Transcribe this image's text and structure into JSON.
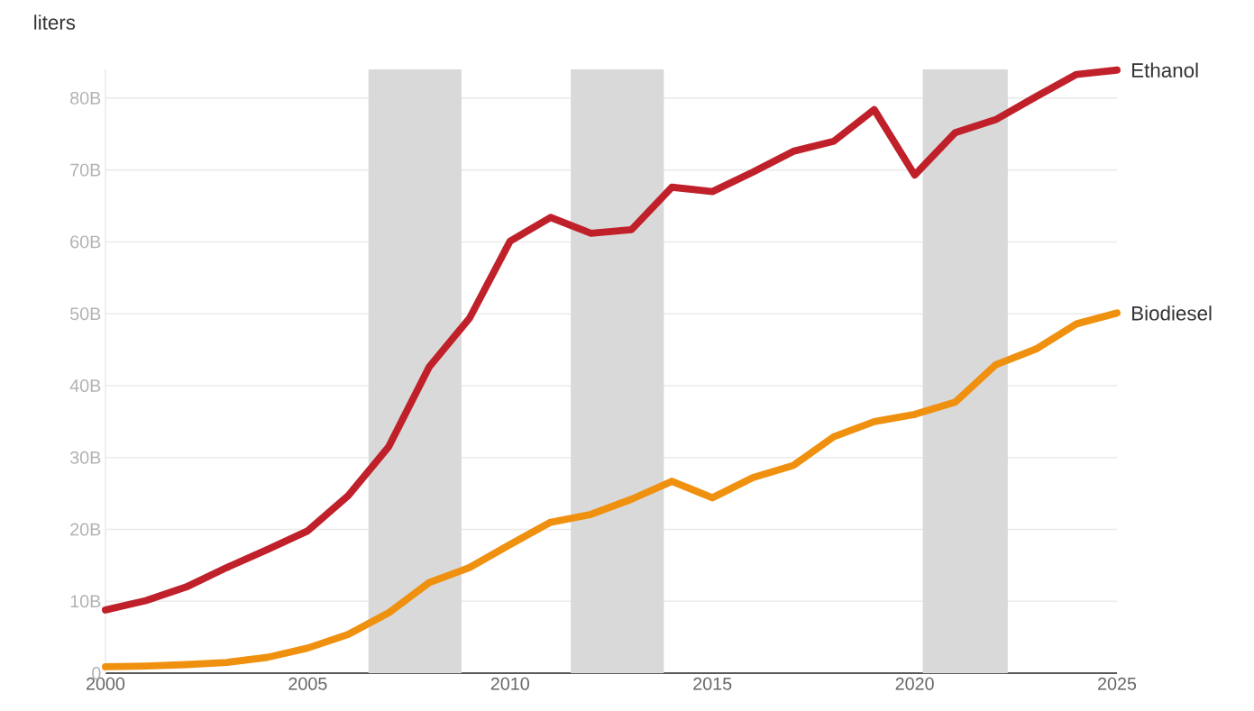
{
  "chart_data": {
    "type": "line",
    "ylabel": "liters",
    "x": [
      2000,
      2001,
      2002,
      2003,
      2004,
      2005,
      2006,
      2007,
      2008,
      2009,
      2010,
      2011,
      2012,
      2013,
      2014,
      2015,
      2016,
      2017,
      2018,
      2019,
      2020,
      2021,
      2022,
      2023,
      2024,
      2025
    ],
    "series": [
      {
        "name": "Ethanol",
        "color": "#c0202a",
        "values": [
          8.8,
          10.1,
          12.0,
          14.7,
          17.2,
          19.8,
          24.7,
          31.5,
          42.6,
          49.4,
          60.1,
          63.4,
          61.2,
          61.7,
          67.6,
          67.0,
          69.7,
          72.6,
          74.0,
          78.4,
          69.3,
          75.2,
          77.0,
          80.2,
          83.3,
          83.9
        ]
      },
      {
        "name": "Biodiesel",
        "color": "#f0900f",
        "values": [
          0.9,
          1.0,
          1.2,
          1.5,
          2.2,
          3.5,
          5.4,
          8.4,
          12.6,
          14.7,
          17.9,
          21.0,
          22.1,
          24.2,
          26.7,
          24.4,
          27.2,
          28.9,
          32.9,
          35.0,
          36.0,
          37.7,
          42.9,
          45.1,
          48.6,
          50.1
        ]
      }
    ],
    "xlim": [
      2000,
      2025
    ],
    "xticks": [
      2000,
      2005,
      2010,
      2015,
      2020,
      2025
    ],
    "ylim": [
      0,
      84
    ],
    "yticks": [
      0,
      {
        "value": 10,
        "label": "10B"
      },
      {
        "value": 20,
        "label": "20B"
      },
      {
        "value": 30,
        "label": "30B"
      },
      {
        "value": 40,
        "label": "40B"
      },
      {
        "value": 50,
        "label": "50B"
      },
      {
        "value": 60,
        "label": "60B"
      },
      {
        "value": 70,
        "label": "70B"
      },
      {
        "value": 80,
        "label": "80B"
      }
    ],
    "bands": [
      {
        "axis": "x",
        "from": 2006.5,
        "to": 2008.8,
        "color": "#d9d9d9"
      },
      {
        "axis": "x",
        "from": 2011.5,
        "to": 2013.8,
        "color": "#d9d9d9"
      },
      {
        "axis": "x",
        "from": 2020.2,
        "to": 2022.3,
        "color": "#d9d9d9"
      }
    ],
    "grid": "y",
    "marker": "none",
    "line_style": "solid"
  }
}
